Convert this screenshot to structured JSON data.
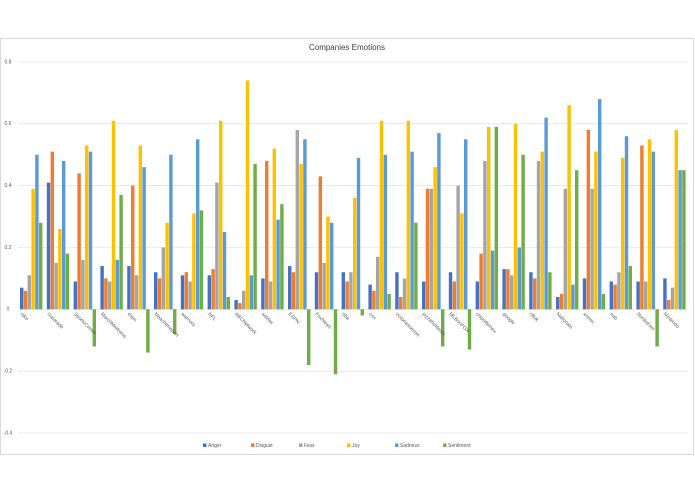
{
  "chart_data": {
    "type": "bar",
    "title": "Companies Emotions",
    "categories": [
      "nike",
      "Gatorade",
      "SportsCenter",
      "MarchMadness",
      "espn",
      "bleacherreport",
      "warriors",
      "NFL",
      "ABCNetwork",
      "adidas",
      "ESPN",
      "FoxNews",
      "nba",
      "cnn",
      "victoriassecret",
      "pizzahutdeals",
      "MLBonFOX",
      "chipotlemex",
      "google",
      "nfluk",
      "Nationals",
      "xmmn",
      "nab",
      "Nordstrom",
      "Nintendo"
    ],
    "series": [
      {
        "name": "Anger",
        "color": "#4472c4",
        "values": [
          0.07,
          0.41,
          0.09,
          0.14,
          0.14,
          0.12,
          0.11,
          0.11,
          0.03,
          0.1,
          0.14,
          0.12,
          0.12,
          0.08,
          0.12,
          0.09,
          0.12,
          0.09,
          0.13,
          0.12,
          0.04,
          0.1,
          0.09,
          0.09,
          0.1
        ]
      },
      {
        "name": "Disgust",
        "color": "#ed7d31",
        "values": [
          0.06,
          0.51,
          0.44,
          0.1,
          0.4,
          0.1,
          0.12,
          0.13,
          0.02,
          0.48,
          0.12,
          0.43,
          0.09,
          0.06,
          0.04,
          0.39,
          0.09,
          0.18,
          0.13,
          0.1,
          0.05,
          0.58,
          0.08,
          0.53,
          0.03
        ]
      },
      {
        "name": "Fear",
        "color": "#a5a5a5",
        "values": [
          0.11,
          0.15,
          0.16,
          0.09,
          0.11,
          0.2,
          0.09,
          0.41,
          0.06,
          0.09,
          0.58,
          0.15,
          0.12,
          0.17,
          0.1,
          0.39,
          0.4,
          0.48,
          0.11,
          0.48,
          0.39,
          0.39,
          0.12,
          0.09,
          0.07
        ]
      },
      {
        "name": "Joy",
        "color": "#ffc000",
        "values": [
          0.39,
          0.26,
          0.53,
          0.61,
          0.53,
          0.28,
          0.31,
          0.61,
          0.74,
          0.52,
          0.47,
          0.3,
          0.36,
          0.61,
          0.61,
          0.46,
          0.31,
          0.59,
          0.6,
          0.51,
          0.66,
          0.51,
          0.49,
          0.55,
          0.58
        ]
      },
      {
        "name": "Sadness",
        "color": "#5b9bd5",
        "values": [
          0.5,
          0.48,
          0.51,
          0.16,
          0.46,
          0.5,
          0.55,
          0.25,
          0.11,
          0.29,
          0.55,
          0.28,
          0.49,
          0.5,
          0.51,
          0.57,
          0.55,
          0.19,
          0.2,
          0.62,
          0.08,
          0.68,
          0.56,
          0.51,
          0.45
        ]
      },
      {
        "name": "Sentiment",
        "color": "#70ad47",
        "values": [
          0.28,
          0.18,
          -0.12,
          0.37,
          -0.14,
          -0.08,
          0.32,
          0.04,
          0.47,
          0.34,
          -0.18,
          -0.21,
          -0.02,
          0.05,
          0.28,
          -0.12,
          -0.13,
          0.59,
          0.5,
          0.12,
          0.45,
          0.05,
          0.14,
          -0.12,
          0.45
        ]
      }
    ],
    "ylim": [
      -0.4,
      0.8
    ],
    "yticks": [
      -0.4,
      -0.2,
      0,
      0.2,
      0.4,
      0.6,
      0.8
    ],
    "grid": true,
    "legend": "bottom"
  }
}
